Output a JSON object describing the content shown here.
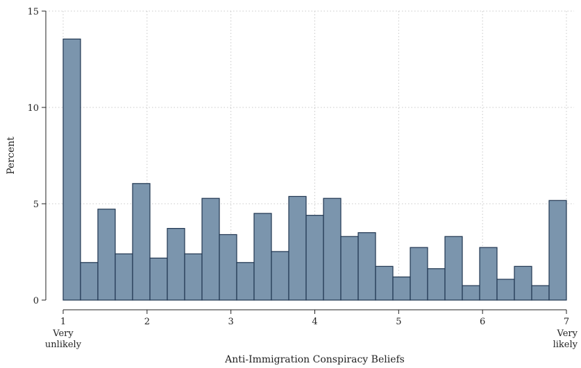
{
  "chart_data": {
    "type": "bar",
    "subtype": "histogram",
    "xlabel": "Anti-Immigration Conspiracy Beliefs",
    "ylabel": "Percent",
    "xlim": [
      1,
      7
    ],
    "ylim": [
      0,
      15
    ],
    "x_ticks": [
      {
        "value": 1,
        "label": "1",
        "sublabel": [
          "Very",
          "unlikely"
        ]
      },
      {
        "value": 2,
        "label": "2",
        "sublabel": []
      },
      {
        "value": 3,
        "label": "3",
        "sublabel": []
      },
      {
        "value": 4,
        "label": "4",
        "sublabel": []
      },
      {
        "value": 5,
        "label": "5",
        "sublabel": []
      },
      {
        "value": 6,
        "label": "6",
        "sublabel": []
      },
      {
        "value": 7,
        "label": "7",
        "sublabel": [
          "Very",
          "likely"
        ]
      }
    ],
    "y_ticks": [
      0,
      5,
      10,
      15
    ],
    "grid": true,
    "bin_start": 1,
    "bin_width": 0.2069,
    "values": [
      13.55,
      1.95,
      4.72,
      2.4,
      6.05,
      2.18,
      3.72,
      2.4,
      5.28,
      3.4,
      1.95,
      4.5,
      2.52,
      5.38,
      4.4,
      5.28,
      3.3,
      3.5,
      1.75,
      1.2,
      2.73,
      1.63,
      3.3,
      0.75,
      2.73,
      1.08,
      1.75,
      0.75,
      5.17
    ],
    "bar_color": "#7b95ad",
    "bar_edge_color": "#1f3550"
  }
}
